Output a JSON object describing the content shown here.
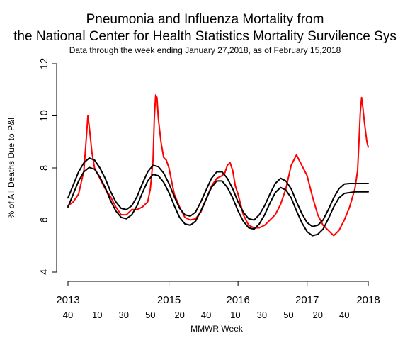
{
  "chart_data": {
    "type": "line",
    "title": "Pneumonia and Influenza Mortality from",
    "title_line2": "the National Center for Health Statistics Mortality Survilence Sys",
    "subtitle": "Data through the week ending January 27,2018, as of February 15,2018",
    "xlabel": "MMWR Week",
    "ylabel": "% of All Deaths Due to P&I",
    "ylim": [
      4,
      12
    ],
    "yticks": [
      4,
      6,
      8,
      10,
      12
    ],
    "xlim": [
      0,
      226
    ],
    "x_index_note": "weeks since MMWR week 40 of 2013",
    "year_labels": [
      {
        "label": "2013",
        "x": 0
      },
      {
        "label": "2015",
        "x": 76
      },
      {
        "label": "2016",
        "x": 128
      },
      {
        "label": "2017",
        "x": 180
      },
      {
        "label": "2018",
        "x": 226
      }
    ],
    "week_labels": [
      {
        "label": "40",
        "x": 0
      },
      {
        "label": "10",
        "x": 22
      },
      {
        "label": "30",
        "x": 42
      },
      {
        "label": "50",
        "x": 62
      },
      {
        "label": "20",
        "x": 84
      },
      {
        "label": "40",
        "x": 104
      },
      {
        "label": "10",
        "x": 126
      },
      {
        "label": "30",
        "x": 146
      },
      {
        "label": "50",
        "x": 166
      },
      {
        "label": "20",
        "x": 188
      },
      {
        "label": "40",
        "x": 208
      }
    ],
    "series": [
      {
        "color": "#ff0000",
        "x": [
          0,
          4,
          8,
          12,
          14,
          15,
          16,
          18,
          20,
          22,
          24,
          28,
          32,
          36,
          40,
          44,
          48,
          52,
          56,
          60,
          62,
          64,
          65,
          66,
          67,
          68,
          70,
          72,
          74,
          76,
          78,
          80,
          84,
          88,
          92,
          96,
          100,
          104,
          108,
          112,
          116,
          118,
          120,
          122,
          124,
          126,
          128,
          130,
          132,
          134,
          136,
          140,
          144,
          148,
          152,
          156,
          160,
          164,
          168,
          170,
          172,
          174,
          176,
          180,
          184,
          188,
          192,
          196,
          200,
          204,
          208,
          212,
          216,
          218,
          219,
          220,
          221,
          222,
          223,
          224,
          225,
          226
        ],
        "values": [
          6.55,
          6.7,
          7.0,
          7.9,
          9.3,
          10.0,
          9.6,
          8.6,
          8.0,
          7.8,
          7.6,
          7.2,
          6.9,
          6.5,
          6.2,
          6.2,
          6.4,
          6.4,
          6.5,
          6.7,
          7.2,
          8.3,
          9.9,
          10.8,
          10.7,
          9.9,
          9.0,
          8.4,
          8.3,
          8.0,
          7.5,
          7.0,
          6.5,
          6.1,
          6.0,
          6.05,
          6.3,
          6.8,
          7.3,
          7.6,
          7.7,
          7.8,
          8.1,
          8.2,
          7.9,
          7.3,
          7.0,
          6.6,
          6.2,
          6.0,
          5.8,
          5.7,
          5.7,
          5.8,
          6.0,
          6.2,
          6.6,
          7.2,
          8.1,
          8.3,
          8.5,
          8.3,
          8.1,
          7.7,
          6.9,
          6.2,
          5.8,
          5.6,
          5.4,
          5.6,
          6.0,
          6.5,
          7.2,
          7.9,
          9.0,
          10.1,
          10.7,
          10.3,
          9.8,
          9.4,
          9.0,
          8.8
        ]
      },
      {
        "color": "#000000",
        "x": [
          0,
          4,
          8,
          12,
          16,
          20,
          24,
          28,
          32,
          36,
          40,
          44,
          48,
          52,
          56,
          60,
          64,
          68,
          72,
          76,
          80,
          84,
          88,
          92,
          96,
          100,
          104,
          108,
          112,
          116,
          120,
          124,
          128,
          132,
          136,
          140,
          144,
          148,
          152,
          156,
          160,
          164,
          168,
          172,
          176,
          180,
          184,
          188,
          192,
          196,
          200,
          204,
          208,
          212,
          216,
          220,
          224,
          226
        ],
        "values": [
          6.85,
          7.35,
          7.85,
          8.2,
          8.38,
          8.3,
          8.0,
          7.6,
          7.1,
          6.7,
          6.45,
          6.4,
          6.55,
          6.9,
          7.4,
          7.85,
          8.1,
          8.05,
          7.8,
          7.4,
          6.9,
          6.45,
          6.2,
          6.15,
          6.3,
          6.7,
          7.15,
          7.6,
          7.85,
          7.85,
          7.6,
          7.2,
          6.7,
          6.3,
          6.05,
          6.0,
          6.2,
          6.55,
          7.0,
          7.4,
          7.6,
          7.5,
          7.2,
          6.7,
          6.25,
          5.9,
          5.75,
          5.8,
          6.0,
          6.4,
          6.85,
          7.2,
          7.38,
          7.4,
          7.4,
          7.4,
          7.4,
          7.4
        ]
      },
      {
        "color": "#000000",
        "x": [
          0,
          4,
          8,
          12,
          16,
          20,
          24,
          28,
          32,
          36,
          40,
          44,
          48,
          52,
          56,
          60,
          64,
          68,
          72,
          76,
          80,
          84,
          88,
          92,
          96,
          100,
          104,
          108,
          112,
          116,
          120,
          124,
          128,
          132,
          136,
          140,
          144,
          148,
          152,
          156,
          160,
          164,
          168,
          172,
          176,
          180,
          184,
          188,
          192,
          196,
          200,
          204,
          208,
          212,
          216,
          220,
          224,
          226
        ],
        "values": [
          6.5,
          7.0,
          7.5,
          7.85,
          8.02,
          7.95,
          7.65,
          7.25,
          6.75,
          6.35,
          6.1,
          6.05,
          6.2,
          6.55,
          7.05,
          7.5,
          7.75,
          7.7,
          7.45,
          7.05,
          6.55,
          6.1,
          5.85,
          5.8,
          5.95,
          6.35,
          6.8,
          7.25,
          7.5,
          7.5,
          7.25,
          6.85,
          6.35,
          5.95,
          5.7,
          5.65,
          5.85,
          6.2,
          6.65,
          7.05,
          7.25,
          7.15,
          6.85,
          6.35,
          5.9,
          5.55,
          5.4,
          5.45,
          5.65,
          6.05,
          6.5,
          6.85,
          7.02,
          7.05,
          7.08,
          7.08,
          7.08,
          7.08
        ]
      }
    ]
  }
}
